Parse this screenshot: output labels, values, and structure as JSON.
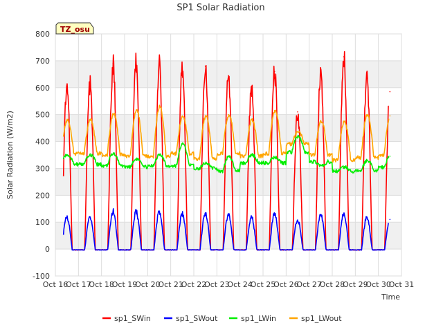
{
  "chart_data": {
    "type": "line",
    "title": "SP1 Solar Radiation",
    "xlabel": "Time",
    "ylabel": "Solar Radiation (W/m2)",
    "xlim": [
      "Oct 16",
      "Oct 31"
    ],
    "ylim": [
      -100,
      800
    ],
    "x_ticks": [
      "Oct 16",
      "Oct 17",
      "Oct 18",
      "Oct 19",
      "Oct 20",
      "Oct 21",
      "Oct 22",
      "Oct 23",
      "Oct 24",
      "Oct 25",
      "Oct 26",
      "Oct 27",
      "Oct 28",
      "Oct 29",
      "Oct 30",
      "Oct 31"
    ],
    "y_ticks": [
      -100,
      0,
      100,
      200,
      300,
      400,
      500,
      600,
      700,
      800
    ],
    "grid": true,
    "legend_position": "bottom",
    "badge": "TZ_osu",
    "days": [
      "Oct 17",
      "Oct 18",
      "Oct 19",
      "Oct 20",
      "Oct 21",
      "Oct 22",
      "Oct 23",
      "Oct 24",
      "Oct 25",
      "Oct 26",
      "Oct 27",
      "Oct 28",
      "Oct 29",
      "Oct 30"
    ],
    "series": [
      {
        "name": "sp1_SWin",
        "color": "#ff0000",
        "daily_peak": [
          610,
          690,
          690,
          685,
          665,
          680,
          645,
          605,
          660,
          510,
          655,
          715,
          635,
          585
        ]
      },
      {
        "name": "sp1_SWout",
        "color": "#0000ff",
        "daily_peak": [
          120,
          140,
          138,
          138,
          132,
          135,
          128,
          118,
          133,
          108,
          128,
          133,
          120,
          110
        ]
      },
      {
        "name": "sp1_LWin",
        "color": "#00ee00",
        "daily_peak": [
          350,
          355,
          335,
          350,
          390,
          320,
          345,
          350,
          340,
          420,
          310,
          305,
          330,
          345
        ],
        "daily_base": [
          315,
          310,
          305,
          310,
          310,
          300,
          290,
          320,
          320,
          360,
          325,
          290,
          290,
          305
        ]
      },
      {
        "name": "sp1_LWout",
        "color": "#ffa500",
        "daily_peak": [
          480,
          505,
          515,
          530,
          495,
          495,
          500,
          480,
          515,
          435,
          475,
          475,
          500,
          495
        ],
        "daily_base": [
          355,
          350,
          345,
          345,
          355,
          335,
          355,
          345,
          355,
          390,
          350,
          330,
          340,
          350
        ]
      }
    ]
  }
}
